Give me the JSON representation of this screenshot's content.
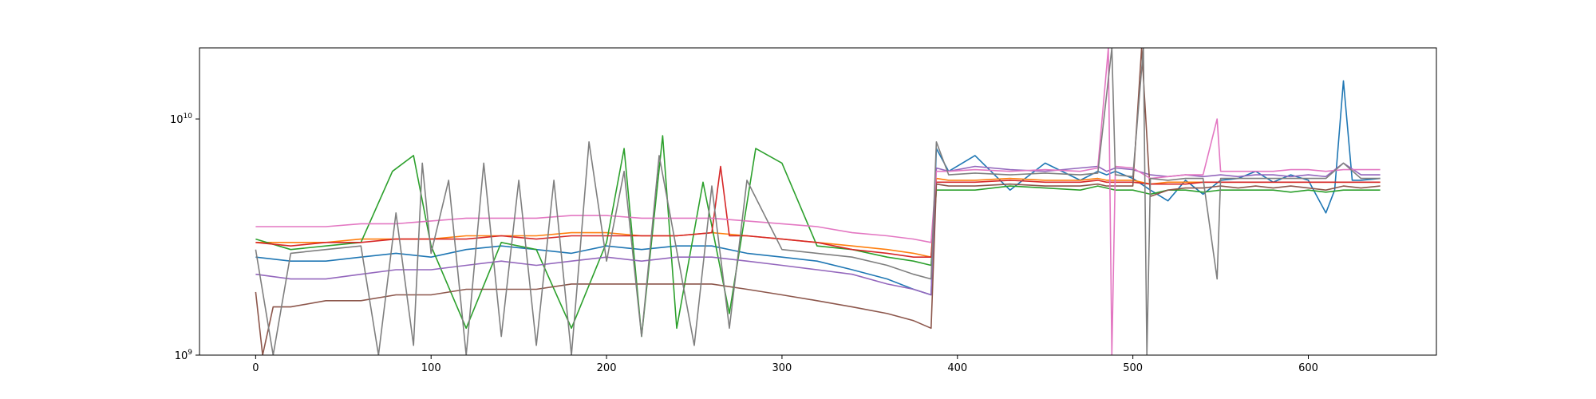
{
  "chart_data": {
    "type": "line",
    "title": "",
    "xlabel": "",
    "ylabel": "",
    "xlim": [
      -32,
      673
    ],
    "ylim": [
      1000000000,
      20000000000
    ],
    "yscale": "log",
    "grid": false,
    "legend": "none",
    "x_ticks": [
      0,
      100,
      200,
      300,
      400,
      500,
      600
    ],
    "x_tick_labels": [
      "0",
      "100",
      "200",
      "300",
      "400",
      "500",
      "600"
    ],
    "y_ticks": [
      {
        "value": 1000000000,
        "base": "10",
        "exponent": "9"
      },
      {
        "value": 10000000000,
        "base": "10",
        "exponent": "10"
      }
    ],
    "series": [
      {
        "color": "#1f77b4",
        "x": [
          0,
          20,
          40,
          60,
          80,
          100,
          120,
          140,
          160,
          180,
          200,
          220,
          240,
          260,
          280,
          300,
          320,
          340,
          360,
          375,
          385,
          388,
          395,
          410,
          430,
          450,
          470,
          480,
          485,
          490,
          500,
          510,
          520,
          530,
          540,
          550,
          560,
          570,
          580,
          590,
          600,
          610,
          615,
          620,
          625,
          630,
          641
        ],
        "y": [
          2600000000.0,
          2500000000.0,
          2500000000.0,
          2600000000.0,
          2700000000.0,
          2600000000.0,
          2800000000.0,
          2900000000.0,
          2800000000.0,
          2700000000.0,
          2900000000.0,
          2800000000.0,
          2900000000.0,
          2900000000.0,
          2700000000.0,
          2600000000.0,
          2500000000.0,
          2300000000.0,
          2100000000.0,
          1900000000.0,
          1800000000.0,
          7500000000.0,
          6000000000.0,
          7000000000.0,
          5000000000.0,
          6500000000.0,
          5500000000.0,
          6000000000.0,
          5800000000.0,
          6000000000.0,
          5600000000.0,
          5000000000.0,
          4500000000.0,
          5500000000.0,
          4800000000.0,
          5500000000.0,
          5600000000.0,
          6000000000.0,
          5400000000.0,
          5800000000.0,
          5500000000.0,
          4000000000.0,
          5000000000.0,
          14500000000.0,
          5500000000.0,
          5500000000.0,
          5600000000.0
        ]
      },
      {
        "color": "#ff7f0e",
        "x": [
          0,
          20,
          40,
          60,
          80,
          100,
          120,
          140,
          160,
          180,
          200,
          220,
          240,
          260,
          280,
          300,
          320,
          340,
          360,
          375,
          385,
          388,
          395,
          410,
          430,
          450,
          470,
          480,
          485,
          490,
          500,
          510,
          520,
          530,
          540,
          550,
          560,
          570,
          580,
          590,
          600,
          610,
          620,
          630,
          641
        ],
        "y": [
          3000000000.0,
          3000000000.0,
          3000000000.0,
          3100000000.0,
          3100000000.0,
          3100000000.0,
          3200000000.0,
          3200000000.0,
          3200000000.0,
          3300000000.0,
          3300000000.0,
          3200000000.0,
          3200000000.0,
          3300000000.0,
          3200000000.0,
          3100000000.0,
          3000000000.0,
          2900000000.0,
          2800000000.0,
          2700000000.0,
          2600000000.0,
          5600000000.0,
          5500000000.0,
          5500000000.0,
          5600000000.0,
          5500000000.0,
          5500000000.0,
          5600000000.0,
          5500000000.0,
          5500000000.0,
          5500000000.0,
          5300000000.0,
          5400000000.0,
          5400000000.0,
          5400000000.0,
          5400000000.0,
          5400000000.0,
          5400000000.0,
          5400000000.0,
          5400000000.0,
          5400000000.0,
          5400000000.0,
          5400000000.0,
          5400000000.0,
          5400000000.0
        ]
      },
      {
        "color": "#2ca02c",
        "x": [
          0,
          20,
          40,
          60,
          78,
          90,
          100,
          120,
          140,
          160,
          180,
          200,
          210,
          220,
          232,
          240,
          255,
          270,
          285,
          300,
          320,
          340,
          360,
          375,
          385,
          388,
          395,
          410,
          430,
          450,
          470,
          480,
          485,
          490,
          500,
          510,
          520,
          530,
          540,
          550,
          560,
          570,
          580,
          590,
          600,
          610,
          620,
          630,
          641
        ],
        "y": [
          3100000000.0,
          2800000000.0,
          2900000000.0,
          3000000000.0,
          6000000000.0,
          7000000000.0,
          2900000000.0,
          1300000000.0,
          3000000000.0,
          2800000000.0,
          1300000000.0,
          3000000000.0,
          7500000000.0,
          1200000000.0,
          8500000000.0,
          1300000000.0,
          5400000000.0,
          1500000000.0,
          7500000000.0,
          6500000000.0,
          2900000000.0,
          2800000000.0,
          2600000000.0,
          2500000000.0,
          2400000000.0,
          5000000000.0,
          5000000000.0,
          5000000000.0,
          5200000000.0,
          5100000000.0,
          5000000000.0,
          5200000000.0,
          5100000000.0,
          5000000000.0,
          5000000000.0,
          4800000000.0,
          5000000000.0,
          5000000000.0,
          4900000000.0,
          5000000000.0,
          5000000000.0,
          5000000000.0,
          5000000000.0,
          4900000000.0,
          5000000000.0,
          4900000000.0,
          5000000000.0,
          5000000000.0,
          5000000000.0
        ]
      },
      {
        "color": "#d62728",
        "x": [
          0,
          20,
          40,
          60,
          80,
          100,
          120,
          140,
          160,
          180,
          200,
          220,
          240,
          260,
          265,
          270,
          280,
          300,
          320,
          340,
          360,
          375,
          385,
          388,
          395,
          410,
          430,
          450,
          470,
          480,
          485,
          490,
          500,
          510,
          520,
          530,
          540,
          550,
          560,
          570,
          580,
          590,
          600,
          610,
          620,
          630,
          641
        ],
        "y": [
          3000000000.0,
          2900000000.0,
          3000000000.0,
          3000000000.0,
          3100000000.0,
          3100000000.0,
          3100000000.0,
          3200000000.0,
          3100000000.0,
          3200000000.0,
          3200000000.0,
          3200000000.0,
          3200000000.0,
          3300000000.0,
          6300000000.0,
          3200000000.0,
          3200000000.0,
          3100000000.0,
          3000000000.0,
          2800000000.0,
          2700000000.0,
          2600000000.0,
          2600000000.0,
          5400000000.0,
          5400000000.0,
          5400000000.0,
          5500000000.0,
          5400000000.0,
          5400000000.0,
          5500000000.0,
          5400000000.0,
          5400000000.0,
          5400000000.0,
          5300000000.0,
          5300000000.0,
          5300000000.0,
          5400000000.0,
          5400000000.0,
          5400000000.0,
          5400000000.0,
          5400000000.0,
          5400000000.0,
          5400000000.0,
          5400000000.0,
          5400000000.0,
          5400000000.0,
          5400000000.0
        ]
      },
      {
        "color": "#9467bd",
        "x": [
          0,
          20,
          40,
          60,
          80,
          100,
          120,
          140,
          160,
          180,
          200,
          220,
          240,
          260,
          280,
          300,
          320,
          340,
          360,
          375,
          385,
          388,
          395,
          410,
          430,
          450,
          470,
          480,
          485,
          490,
          500,
          510,
          520,
          530,
          540,
          550,
          560,
          570,
          580,
          590,
          600,
          610,
          620,
          630,
          641
        ],
        "y": [
          2200000000.0,
          2100000000.0,
          2100000000.0,
          2200000000.0,
          2300000000.0,
          2300000000.0,
          2400000000.0,
          2500000000.0,
          2400000000.0,
          2500000000.0,
          2600000000.0,
          2500000000.0,
          2600000000.0,
          2600000000.0,
          2500000000.0,
          2400000000.0,
          2300000000.0,
          2200000000.0,
          2000000000.0,
          1900000000.0,
          1800000000.0,
          6200000000.0,
          6000000000.0,
          6300000000.0,
          6100000000.0,
          6000000000.0,
          6200000000.0,
          6300000000.0,
          6000000000.0,
          6200000000.0,
          6100000000.0,
          5800000000.0,
          5700000000.0,
          5800000000.0,
          5700000000.0,
          5800000000.0,
          5700000000.0,
          5800000000.0,
          5800000000.0,
          5700000000.0,
          5800000000.0,
          5700000000.0,
          6500000000.0,
          5800000000.0,
          5800000000.0
        ]
      },
      {
        "color": "#8c564b",
        "x": [
          0,
          4,
          10,
          20,
          40,
          60,
          80,
          100,
          120,
          140,
          160,
          180,
          200,
          220,
          240,
          260,
          280,
          300,
          320,
          340,
          360,
          375,
          385,
          388,
          395,
          410,
          430,
          450,
          470,
          480,
          485,
          490,
          500,
          505,
          510,
          520,
          530,
          540,
          550,
          560,
          570,
          580,
          590,
          600,
          610,
          620,
          630,
          641
        ],
        "y": [
          1850000000.0,
          1000000000.0,
          1600000000.0,
          1600000000.0,
          1700000000.0,
          1700000000.0,
          1800000000.0,
          1800000000.0,
          1900000000.0,
          1900000000.0,
          1900000000.0,
          2000000000.0,
          2000000000.0,
          2000000000.0,
          2000000000.0,
          2000000000.0,
          1900000000.0,
          1800000000.0,
          1700000000.0,
          1600000000.0,
          1500000000.0,
          1400000000.0,
          1300000000.0,
          5300000000.0,
          5200000000.0,
          5200000000.0,
          5300000000.0,
          5200000000.0,
          5200000000.0,
          5300000000.0,
          5200000000.0,
          5200000000.0,
          5200000000.0,
          20000000000.0,
          4700000000.0,
          5000000000.0,
          5100000000.0,
          5100000000.0,
          5200000000.0,
          5100000000.0,
          5200000000.0,
          5100000000.0,
          5200000000.0,
          5100000000.0,
          5000000000.0,
          5200000000.0,
          5100000000.0,
          5200000000.0
        ]
      },
      {
        "color": "#e377c2",
        "x": [
          0,
          20,
          40,
          60,
          80,
          100,
          120,
          140,
          160,
          180,
          200,
          220,
          240,
          260,
          280,
          300,
          320,
          340,
          360,
          375,
          385,
          388,
          395,
          410,
          430,
          450,
          470,
          480,
          486,
          488,
          490,
          500,
          510,
          520,
          530,
          540,
          548,
          550,
          560,
          570,
          580,
          590,
          600,
          610,
          620,
          630,
          641
        ],
        "y": [
          3500000000.0,
          3500000000.0,
          3500000000.0,
          3600000000.0,
          3600000000.0,
          3700000000.0,
          3800000000.0,
          3800000000.0,
          3800000000.0,
          3900000000.0,
          3900000000.0,
          3800000000.0,
          3800000000.0,
          3800000000.0,
          3700000000.0,
          3600000000.0,
          3500000000.0,
          3300000000.0,
          3200000000.0,
          3100000000.0,
          3000000000.0,
          6000000000.0,
          6000000000.0,
          6100000000.0,
          6000000000.0,
          6100000000.0,
          6000000000.0,
          6200000000.0,
          20000000000.0,
          1000000000.0,
          6300000000.0,
          6200000000.0,
          5600000000.0,
          5700000000.0,
          5800000000.0,
          5800000000.0,
          10000000000.0,
          6000000000.0,
          6000000000.0,
          6000000000.0,
          6000000000.0,
          6100000000.0,
          6100000000.0,
          6000000000.0,
          6100000000.0,
          6100000000.0,
          6100000000.0
        ]
      },
      {
        "color": "#7f7f7f",
        "x": [
          0,
          10,
          20,
          40,
          60,
          70,
          80,
          90,
          95,
          100,
          110,
          120,
          130,
          140,
          150,
          160,
          170,
          180,
          190,
          200,
          210,
          220,
          230,
          250,
          260,
          270,
          280,
          300,
          320,
          340,
          360,
          375,
          385,
          388,
          395,
          410,
          430,
          450,
          470,
          480,
          488,
          490,
          500,
          506,
          508,
          510,
          520,
          530,
          540,
          548,
          550,
          560,
          570,
          580,
          590,
          600,
          610,
          620,
          630,
          641
        ],
        "y": [
          2800000000.0,
          1000000000.0,
          2700000000.0,
          2800000000.0,
          2900000000.0,
          1000000000.0,
          4000000000.0,
          1100000000.0,
          6500000000.0,
          2700000000.0,
          5500000000.0,
          1000000000.0,
          6500000000.0,
          1200000000.0,
          5500000000.0,
          1100000000.0,
          5500000000.0,
          1000000000.0,
          8000000000.0,
          2500000000.0,
          6000000000.0,
          1200000000.0,
          7000000000.0,
          1100000000.0,
          5200000000.0,
          1300000000.0,
          5500000000.0,
          2800000000.0,
          2700000000.0,
          2600000000.0,
          2400000000.0,
          2200000000.0,
          2100000000.0,
          8000000000.0,
          5800000000.0,
          5900000000.0,
          5800000000.0,
          5900000000.0,
          5800000000.0,
          5900000000.0,
          20000000000.0,
          5800000000.0,
          5700000000.0,
          20000000000.0,
          1000000000.0,
          5600000000.0,
          5500000000.0,
          5600000000.0,
          5600000000.0,
          2100000000.0,
          5600000000.0,
          5600000000.0,
          5600000000.0,
          5600000000.0,
          5600000000.0,
          5600000000.0,
          5600000000.0,
          6500000000.0,
          5600000000.0,
          5600000000.0
        ]
      }
    ]
  }
}
